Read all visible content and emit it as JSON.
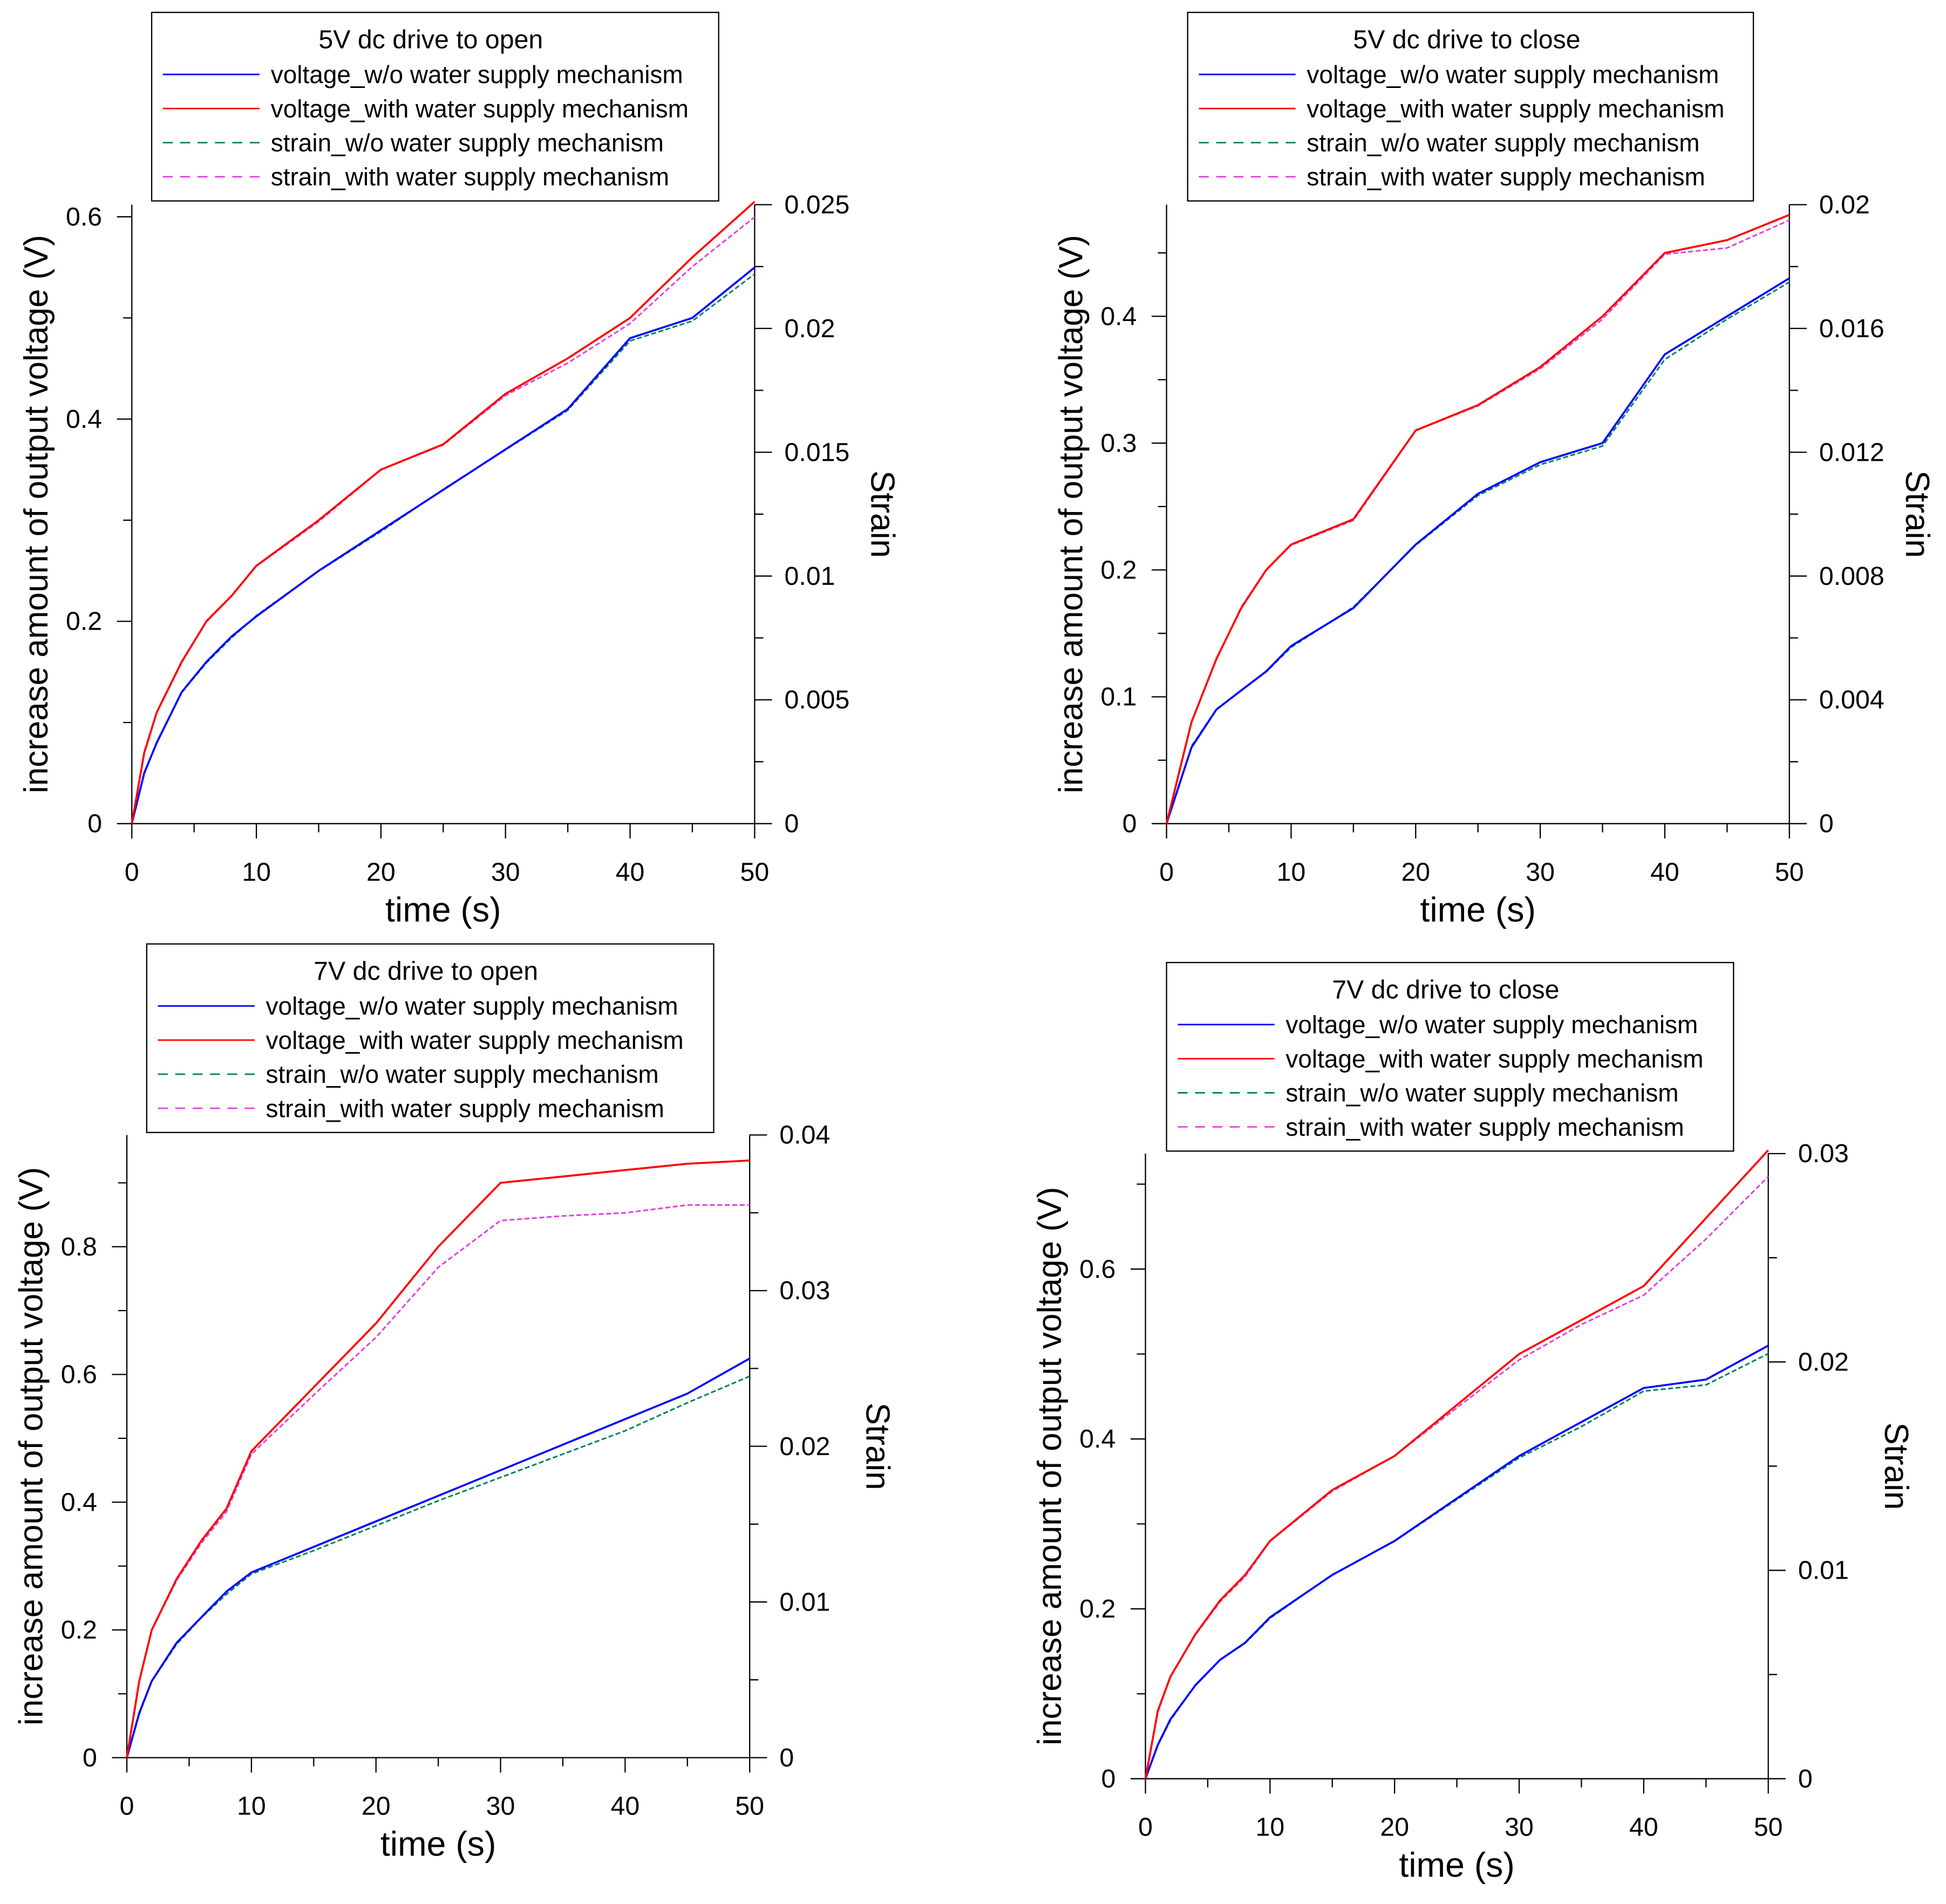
{
  "legend_entries": [
    "voltage_w/o water supply mechanism",
    "voltage_with water supply mechanism",
    "strain_w/o water supply mechanism",
    "strain_with water supply mechanism"
  ],
  "series_colors": [
    "#0000ff",
    "#ff0000",
    "#008060",
    "#e040e0"
  ],
  "chart_data": [
    {
      "type": "line",
      "title": "5V dc drive to open",
      "xlabel": "time (s)",
      "ylabel": "increase amount of output voltage (V)",
      "y2label": "Strain",
      "xlim": [
        0,
        50
      ],
      "ylim": [
        0,
        0.612
      ],
      "y2lim": [
        0,
        0.025
      ],
      "xticks": [
        0,
        10,
        20,
        30,
        40,
        50
      ],
      "xtick_labels": [
        "0",
        "10",
        "20",
        "30",
        "40",
        "50"
      ],
      "yticks": [
        0,
        0.2,
        0.4,
        0.6
      ],
      "ytick_labels": [
        "0",
        "0.2",
        "0.4",
        "0.6"
      ],
      "y2ticks": [
        0,
        0.005,
        0.01,
        0.015,
        0.02,
        0.025
      ],
      "y2tick_labels": [
        "0",
        "0.005",
        "0.01",
        "0.015",
        "0.02",
        "0.025"
      ],
      "legend_position": "top-center",
      "x": [
        0,
        1,
        2,
        4,
        6,
        8,
        10,
        15,
        20,
        25,
        30,
        35,
        40,
        45,
        50
      ],
      "series": [
        {
          "name": "voltage_w/o water supply mechanism",
          "axis": "left",
          "style": "solid",
          "values": [
            0,
            0.05,
            0.08,
            0.13,
            0.16,
            0.185,
            0.205,
            0.25,
            0.29,
            0.33,
            0.37,
            0.41,
            0.48,
            0.5,
            0.55
          ]
        },
        {
          "name": "voltage_with water supply mechanism",
          "axis": "left",
          "style": "solid",
          "values": [
            0,
            0.07,
            0.11,
            0.16,
            0.2,
            0.225,
            0.255,
            0.3,
            0.35,
            0.375,
            0.425,
            0.46,
            0.5,
            0.56,
            0.615
          ]
        },
        {
          "name": "strain_w/o water supply mechanism",
          "axis": "right",
          "style": "dashed",
          "values": [
            0,
            0.002,
            0.0033,
            0.0053,
            0.0065,
            0.0075,
            0.0084,
            0.0102,
            0.0118,
            0.0135,
            0.0151,
            0.0167,
            0.0195,
            0.0203,
            0.0222
          ]
        },
        {
          "name": "strain_with water supply mechanism",
          "axis": "right",
          "style": "dashed",
          "values": [
            0,
            0.0029,
            0.0045,
            0.0065,
            0.0082,
            0.0092,
            0.0104,
            0.0122,
            0.0143,
            0.0153,
            0.0173,
            0.0186,
            0.0202,
            0.0225,
            0.0245
          ]
        }
      ]
    },
    {
      "type": "line",
      "title": "5V dc drive to close",
      "xlabel": "time (s)",
      "ylabel": "increase amount of output voltage (V)",
      "y2label": "Strain",
      "xlim": [
        0,
        50
      ],
      "ylim": [
        0,
        0.488
      ],
      "y2lim": [
        0,
        0.02
      ],
      "xticks": [
        0,
        10,
        20,
        30,
        40,
        50
      ],
      "xtick_labels": [
        "0",
        "10",
        "20",
        "30",
        "40",
        "50"
      ],
      "yticks": [
        0,
        0.1,
        0.2,
        0.3,
        0.4
      ],
      "ytick_labels": [
        "0",
        "0.1",
        "0.2",
        "0.3",
        "0.4"
      ],
      "y2ticks": [
        0,
        0.004,
        0.008,
        0.012,
        0.016,
        0.02
      ],
      "y2tick_labels": [
        "0",
        "0.004",
        "0.008",
        "0.012",
        "0.016",
        "0.02"
      ],
      "legend_position": "top-center",
      "x": [
        0,
        1,
        2,
        4,
        6,
        8,
        10,
        15,
        20,
        25,
        30,
        35,
        40,
        45,
        50
      ],
      "series": [
        {
          "name": "voltage_w/o water supply mechanism",
          "axis": "left",
          "style": "solid",
          "values": [
            0,
            0.03,
            0.06,
            0.09,
            0.105,
            0.12,
            0.14,
            0.17,
            0.22,
            0.26,
            0.285,
            0.3,
            0.37,
            0.4,
            0.43
          ]
        },
        {
          "name": "voltage_with water supply mechanism",
          "axis": "left",
          "style": "solid",
          "values": [
            0,
            0.04,
            0.08,
            0.13,
            0.17,
            0.2,
            0.22,
            0.24,
            0.31,
            0.33,
            0.36,
            0.4,
            0.45,
            0.46,
            0.48
          ]
        },
        {
          "name": "strain_w/o water supply mechanism",
          "axis": "right",
          "style": "dashed",
          "values": [
            0,
            0.0012,
            0.0025,
            0.0037,
            0.0043,
            0.0049,
            0.0057,
            0.007,
            0.009,
            0.0106,
            0.0116,
            0.0122,
            0.015,
            0.0163,
            0.0175
          ]
        },
        {
          "name": "strain_with water supply mechanism",
          "axis": "right",
          "style": "dashed",
          "values": [
            0,
            0.0016,
            0.0033,
            0.0053,
            0.007,
            0.0082,
            0.009,
            0.0098,
            0.0127,
            0.0135,
            0.0147,
            0.0163,
            0.0184,
            0.0186,
            0.0195
          ]
        }
      ]
    },
    {
      "type": "line",
      "title": "7V dc drive to open",
      "xlabel": "time (s)",
      "ylabel": "increase amount of output voltage (V)",
      "y2label": "Strain",
      "xlim": [
        0,
        50
      ],
      "ylim": [
        0,
        0.975
      ],
      "y2lim": [
        0,
        0.04
      ],
      "xticks": [
        0,
        10,
        20,
        30,
        40,
        50
      ],
      "xtick_labels": [
        "0",
        "10",
        "20",
        "30",
        "40",
        "50"
      ],
      "yticks": [
        0,
        0.2,
        0.4,
        0.6,
        0.8
      ],
      "ytick_labels": [
        "0",
        "0.2",
        "0.4",
        "0.6",
        "0.8"
      ],
      "y2ticks": [
        0,
        0.01,
        0.02,
        0.03,
        0.04
      ],
      "y2tick_labels": [
        "0",
        "0.01",
        "0.02",
        "0.03",
        "0.04"
      ],
      "legend_position": "top-center",
      "x": [
        0,
        1,
        2,
        4,
        6,
        8,
        10,
        15,
        20,
        25,
        30,
        35,
        40,
        45,
        50
      ],
      "series": [
        {
          "name": "voltage_w/o water supply mechanism",
          "axis": "left",
          "style": "solid",
          "values": [
            0,
            0.07,
            0.12,
            0.18,
            0.22,
            0.26,
            0.29,
            0.33,
            0.37,
            0.41,
            0.45,
            0.49,
            0.53,
            0.57,
            0.625
          ]
        },
        {
          "name": "voltage_with water supply mechanism",
          "axis": "left",
          "style": "solid",
          "values": [
            0,
            0.12,
            0.2,
            0.28,
            0.34,
            0.39,
            0.48,
            0.58,
            0.68,
            0.8,
            0.9,
            0.91,
            0.92,
            0.93,
            0.935
          ]
        },
        {
          "name": "strain_w/o water supply mechanism",
          "axis": "right",
          "style": "dashed",
          "values": [
            0,
            0.0028,
            0.0049,
            0.0073,
            0.009,
            0.0105,
            0.0118,
            0.0133,
            0.0149,
            0.0165,
            0.018,
            0.0195,
            0.021,
            0.0228,
            0.0245
          ]
        },
        {
          "name": "strain_with water supply mechanism",
          "axis": "right",
          "style": "dashed",
          "values": [
            0,
            0.0049,
            0.0082,
            0.0114,
            0.0138,
            0.0158,
            0.0195,
            0.0233,
            0.027,
            0.0315,
            0.0345,
            0.0348,
            0.035,
            0.0355,
            0.0355
          ]
        }
      ]
    },
    {
      "type": "line",
      "title": "7V dc drive to close",
      "xlabel": "time (s)",
      "ylabel": "increase amount of output voltage (V)",
      "y2label": "Strain",
      "xlim": [
        0,
        50
      ],
      "ylim": [
        0,
        0.736
      ],
      "y2lim": [
        0,
        0.03
      ],
      "xticks": [
        0,
        10,
        20,
        30,
        40,
        50
      ],
      "xtick_labels": [
        "0",
        "10",
        "20",
        "30",
        "40",
        "50"
      ],
      "yticks": [
        0,
        0.2,
        0.4,
        0.6
      ],
      "ytick_labels": [
        "0",
        "0.2",
        "0.4",
        "0.6"
      ],
      "y2ticks": [
        0,
        0.01,
        0.02,
        0.03
      ],
      "y2tick_labels": [
        "0",
        "0.01",
        "0.02",
        "0.03"
      ],
      "legend_position": "top-center",
      "x": [
        0,
        1,
        2,
        4,
        6,
        8,
        10,
        15,
        20,
        25,
        30,
        35,
        40,
        45,
        50
      ],
      "series": [
        {
          "name": "voltage_w/o water supply mechanism",
          "axis": "left",
          "style": "solid",
          "values": [
            0,
            0.04,
            0.07,
            0.11,
            0.14,
            0.16,
            0.19,
            0.24,
            0.28,
            0.33,
            0.38,
            0.42,
            0.46,
            0.47,
            0.51
          ]
        },
        {
          "name": "voltage_with water supply mechanism",
          "axis": "left",
          "style": "solid",
          "values": [
            0,
            0.08,
            0.12,
            0.17,
            0.21,
            0.24,
            0.28,
            0.34,
            0.38,
            0.44,
            0.5,
            0.54,
            0.58,
            0.66,
            0.74
          ]
        },
        {
          "name": "strain_w/o water supply mechanism",
          "axis": "right",
          "style": "dashed",
          "values": [
            0,
            0.0016,
            0.0028,
            0.0045,
            0.0057,
            0.0065,
            0.0077,
            0.0098,
            0.0114,
            0.0134,
            0.0154,
            0.0169,
            0.0186,
            0.0189,
            0.0204
          ]
        },
        {
          "name": "strain_with water supply mechanism",
          "axis": "right",
          "style": "dashed",
          "values": [
            0,
            0.0032,
            0.0049,
            0.0069,
            0.0085,
            0.0097,
            0.0114,
            0.0138,
            0.0155,
            0.0178,
            0.0201,
            0.0218,
            0.0232,
            0.0259,
            0.0289
          ]
        }
      ]
    }
  ]
}
